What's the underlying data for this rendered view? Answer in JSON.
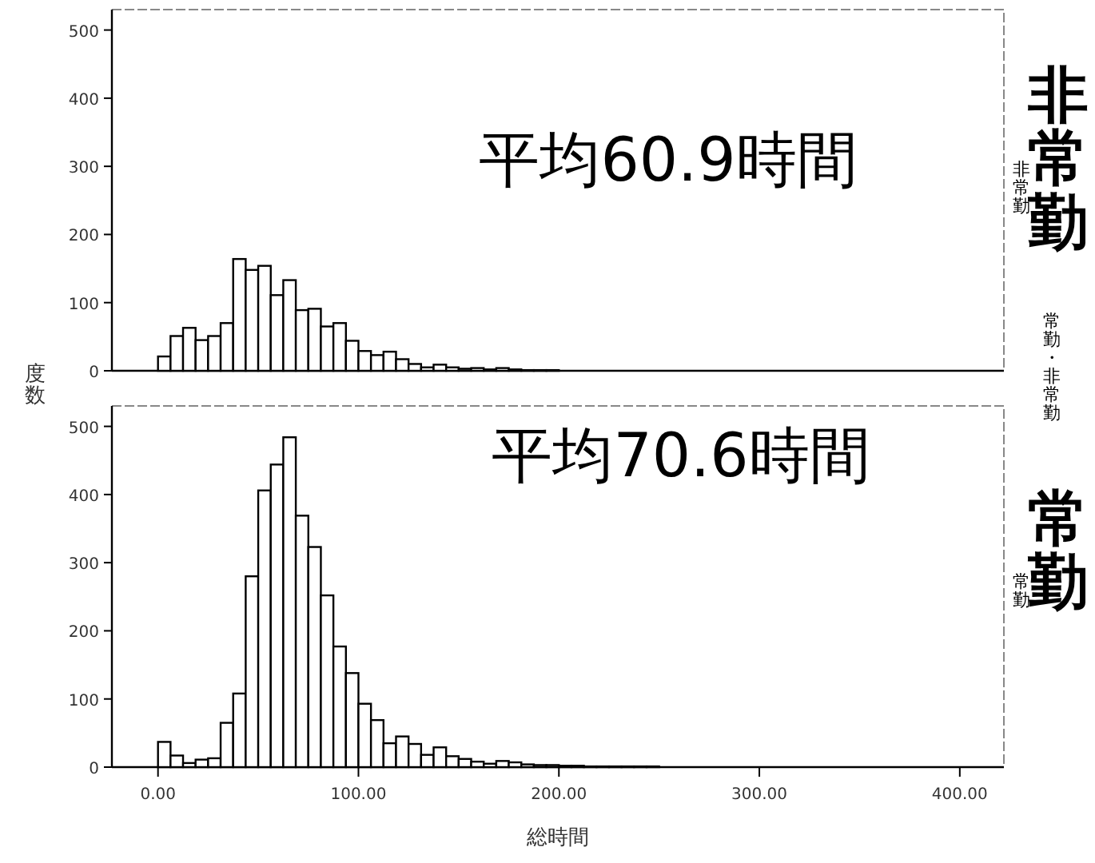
{
  "chart_data": [
    {
      "type": "histogram",
      "ylabel": "度数",
      "annotations": [
        "平均60.9時間",
        "非常勤",
        "非常勤",
        "常勤・非常勤"
      ],
      "bins": [
        0,
        6.25,
        12.5,
        18.75,
        25,
        31.25,
        37.5,
        43.75,
        50,
        56.25,
        62.5,
        68.75,
        75,
        81.25,
        87.5,
        93.75,
        100,
        106.25,
        112.5,
        118.75,
        125,
        131.25,
        137.5,
        143.75,
        150,
        156.25,
        162.5,
        168.75,
        175,
        181.25,
        187.5,
        193.75,
        200
      ],
      "values": [
        21,
        51,
        63,
        45,
        51,
        70,
        164,
        148,
        154,
        111,
        133,
        89,
        91,
        65,
        70,
        44,
        29,
        23,
        28,
        17,
        10,
        5,
        9,
        5,
        3,
        4,
        2,
        4,
        2,
        1,
        1,
        1
      ],
      "color": "#ffffff",
      "xlim": [
        -23,
        422
      ],
      "ylim": [
        0,
        530
      ],
      "yticks": [
        0,
        100,
        200,
        300,
        400,
        500
      ],
      "tick_labels": "y"
    },
    {
      "type": "histogram",
      "xlabel": "総時間",
      "annotations": [
        "平均70.6時間",
        "常勤",
        "常勤"
      ],
      "bins": [
        0,
        6.25,
        12.5,
        18.75,
        25,
        31.25,
        37.5,
        43.75,
        50,
        56.25,
        62.5,
        68.75,
        75,
        81.25,
        87.5,
        93.75,
        100,
        106.25,
        112.5,
        118.75,
        125,
        131.25,
        137.5,
        143.75,
        150,
        156.25,
        162.5,
        168.75,
        175,
        181.25,
        187.5,
        193.75,
        200,
        206.25,
        212.5,
        218.75,
        225,
        231.25,
        237.5,
        243.75,
        250
      ],
      "values": [
        37,
        17,
        6,
        11,
        13,
        65,
        108,
        280,
        406,
        444,
        484,
        369,
        323,
        252,
        177,
        138,
        93,
        69,
        35,
        45,
        34,
        18,
        29,
        16,
        12,
        8,
        5,
        9,
        7,
        4,
        3,
        3,
        2,
        2,
        1,
        1,
        1,
        1,
        1,
        1
      ],
      "color": "#ffffff",
      "xlim": [
        -23,
        422
      ],
      "ylim": [
        0,
        530
      ],
      "yticks": [
        0,
        100,
        200,
        300,
        400,
        500
      ],
      "xticks": [
        {
          "value": 0,
          "label": "0.00"
        },
        {
          "value": 100,
          "label": "100.00"
        },
        {
          "value": 200,
          "label": "200.00"
        },
        {
          "value": 300,
          "label": "300.00"
        },
        {
          "value": 400,
          "label": "400.00"
        }
      ]
    }
  ]
}
